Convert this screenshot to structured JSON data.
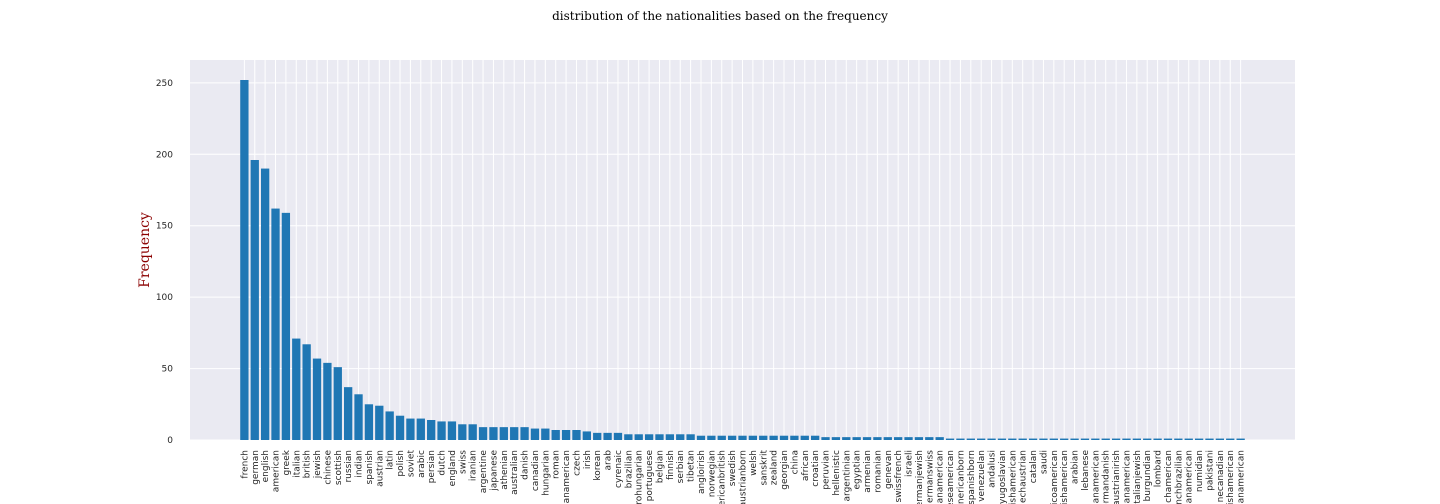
{
  "chart_data": {
    "type": "bar",
    "title": "distribution of the nationalities based on the frequency",
    "ylabel": "Frequency",
    "categories": [
      "french",
      "german",
      "english",
      "american",
      "greek",
      "italian",
      "british",
      "jewish",
      "chinese",
      "scottish",
      "russian",
      "indian",
      "spanish",
      "austrian",
      "latin",
      "polish",
      "soviet",
      "arabic",
      "persian",
      "dutch",
      "england",
      "swiss",
      "iranian",
      "argentine",
      "japanese",
      "athenian",
      "australian",
      "danish",
      "canadian",
      "hungarian",
      "roman",
      "anamerican",
      "czech",
      "irish",
      "korean",
      "arab",
      "cyrenaic",
      "brazilian",
      "rohungarian",
      "portuguese",
      "belgian",
      "finnish",
      "serbian",
      "tibetan",
      "angloirish",
      "norwegian",
      "ericanbritish",
      "swedish",
      "austrianborn",
      "welsh",
      "sanskrit",
      "zealand",
      "georgian",
      "china",
      "african",
      "croatian",
      "peruvian",
      "hellenistic",
      "argentinian",
      "egyptian",
      "armenian",
      "romanian",
      "genevan",
      "swissfrench",
      "israeli",
      "ermanjewish",
      "ermanswiss",
      "lianamerican",
      "seseamerican",
      "nericanborn",
      "spanishborn",
      "venezuelan",
      "andalusi",
      "yugoslavian",
      "ishamerican",
      "echaustrian",
      "catalan",
      "saudi",
      "icoamerican",
      "ishamerican",
      "arabian",
      "lebanese",
      "ianamerican",
      "ormandanish",
      "austrianirish",
      "ianamerican",
      "italianjewish",
      "burgundian",
      "lombard",
      "chamerican",
      "nchbrazilian",
      "anamerican",
      "numidian",
      "pakistani",
      "necanadian",
      "ishamerican",
      "anamerican"
    ],
    "values": [
      252,
      196,
      190,
      162,
      159,
      71,
      67,
      57,
      54,
      51,
      37,
      32,
      25,
      24,
      20,
      17,
      15,
      15,
      14,
      13,
      13,
      11,
      11,
      9,
      9,
      9,
      9,
      9,
      8,
      8,
      7,
      7,
      7,
      6,
      5,
      5,
      5,
      4,
      4,
      4,
      4,
      4,
      4,
      4,
      3,
      3,
      3,
      3,
      3,
      3,
      3,
      3,
      3,
      3,
      3,
      3,
      2,
      2,
      2,
      2,
      2,
      2,
      2,
      2,
      2,
      2,
      2,
      2,
      1,
      1,
      1,
      1,
      1,
      1,
      1,
      1,
      1,
      1,
      1,
      1,
      1,
      1,
      1,
      1,
      1,
      1,
      1,
      1,
      1,
      1,
      1,
      1,
      1,
      1,
      1,
      1,
      1
    ],
    "color": "#1f77b4",
    "ylim": [
      0,
      266
    ],
    "yticks": [
      0,
      50,
      100,
      150,
      200,
      250
    ],
    "grid": true
  }
}
